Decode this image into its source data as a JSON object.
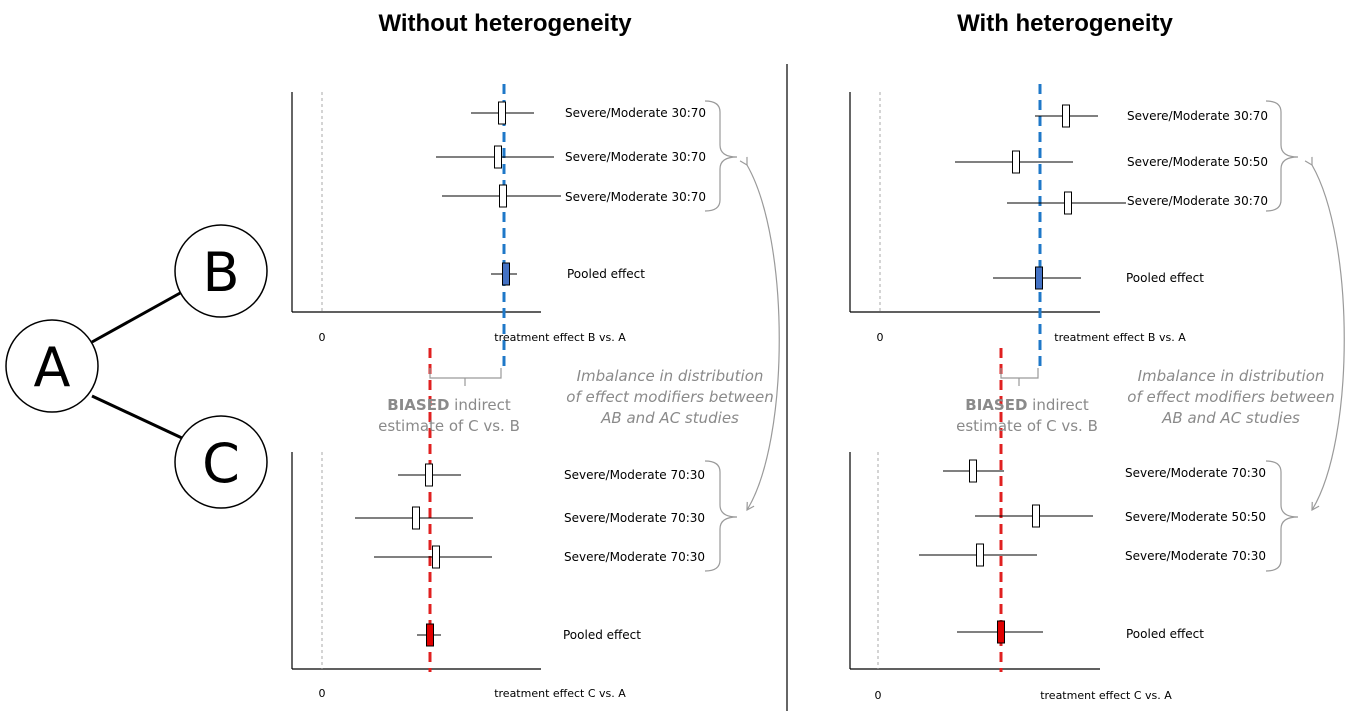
{
  "titles": {
    "left": "Without heterogeneity",
    "right": "With heterogeneity"
  },
  "network": {
    "nodes": [
      "A",
      "B",
      "C"
    ]
  },
  "panels": [
    {
      "id": "left-top",
      "zero_label": "0",
      "axis_label": "treatment effect B vs. A",
      "studies": [
        {
          "label": "Severe/Moderate 30:70"
        },
        {
          "label": "Severe/Moderate 30:70"
        },
        {
          "label": "Severe/Moderate 30:70"
        }
      ],
      "pooled_label": "Pooled effect",
      "pooled_color": "#4472c4",
      "line_color": "#1f78c8"
    },
    {
      "id": "left-bottom",
      "zero_label": "0",
      "axis_label": "treatment effect C vs. A",
      "studies": [
        {
          "label": "Severe/Moderate 70:30"
        },
        {
          "label": "Severe/Moderate 70:30"
        },
        {
          "label": "Severe/Moderate 70:30"
        }
      ],
      "pooled_label": "Pooled effect",
      "pooled_color": "#e00000",
      "line_color": "#e02020"
    },
    {
      "id": "right-top",
      "zero_label": "0",
      "axis_label": "treatment effect B vs. A",
      "studies": [
        {
          "label": "Severe/Moderate 30:70"
        },
        {
          "label": "Severe/Moderate 50:50"
        },
        {
          "label": "Severe/Moderate 30:70"
        }
      ],
      "pooled_label": "Pooled effect",
      "pooled_color": "#4472c4",
      "line_color": "#1f78c8"
    },
    {
      "id": "right-bottom",
      "zero_label": "0",
      "axis_label": "treatment effect C vs. A",
      "studies": [
        {
          "label": "Severe/Moderate 70:30"
        },
        {
          "label": "Severe/Moderate 50:50"
        },
        {
          "label": "Severe/Moderate 70:30"
        }
      ],
      "pooled_label": "Pooled effect",
      "pooled_color": "#e00000",
      "line_color": "#e02020"
    }
  ],
  "annotations": {
    "biased_bold": "BIASED",
    "biased_rest": "indirect",
    "biased_line2": "estimate of C vs. B",
    "imbalance_lines": [
      "Imbalance in distribution",
      "of effect modifiers between",
      "AB and AC studies"
    ],
    "annotation_color": "#8a8a8a"
  }
}
